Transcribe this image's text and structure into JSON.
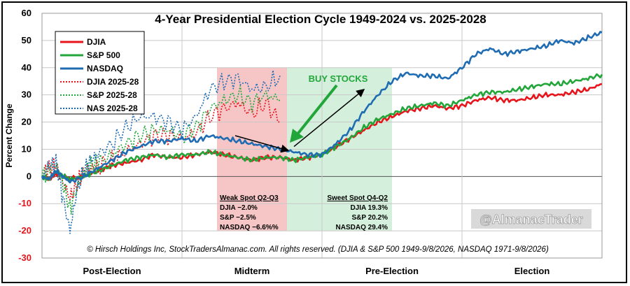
{
  "chart_data": {
    "type": "line",
    "title": "4-Year Presidential Election Cycle 1949-2024 vs. 2025-2028",
    "ylabel": "Percent Change",
    "xlabel": "",
    "ylim": [
      -30,
      60
    ],
    "yticks": [
      "60",
      "50",
      "40",
      "30",
      "20",
      "10",
      "0",
      "-10",
      "-20",
      "-30"
    ],
    "xlim": [
      0,
      4
    ],
    "x_categories": [
      "Post-Election",
      "Midterm",
      "Pre-Election",
      "Election"
    ],
    "grid": true,
    "legend_position": "top-left",
    "series": [
      {
        "name": "DJIA",
        "color": "#e8141b",
        "style": "solid",
        "x": [
          0,
          0.05,
          0.1,
          0.15,
          0.2,
          0.3,
          0.4,
          0.5,
          0.6,
          0.7,
          0.8,
          0.9,
          1.0,
          1.1,
          1.2,
          1.3,
          1.4,
          1.5,
          1.6,
          1.7,
          1.8,
          1.9,
          2.0,
          2.1,
          2.2,
          2.3,
          2.4,
          2.5,
          2.6,
          2.7,
          2.8,
          2.9,
          3.0,
          3.1,
          3.2,
          3.3,
          3.4,
          3.5,
          3.6,
          3.7,
          3.8,
          3.9,
          4.0
        ],
        "y": [
          0,
          -1,
          1,
          0,
          -1,
          0,
          2,
          4,
          5,
          6,
          8,
          7,
          7,
          8,
          9,
          8,
          7,
          6,
          7,
          7,
          6,
          7,
          8,
          11,
          14,
          17,
          20,
          22,
          24,
          25,
          26,
          25,
          26,
          28,
          29,
          28,
          28,
          29,
          30,
          30,
          31,
          32,
          34
        ]
      },
      {
        "name": "S&P 500",
        "color": "#22a63a",
        "style": "solid",
        "x": [
          0,
          0.05,
          0.1,
          0.15,
          0.2,
          0.3,
          0.4,
          0.5,
          0.6,
          0.7,
          0.8,
          0.9,
          1.0,
          1.1,
          1.2,
          1.3,
          1.4,
          1.5,
          1.6,
          1.7,
          1.8,
          1.9,
          2.0,
          2.1,
          2.2,
          2.3,
          2.4,
          2.5,
          2.6,
          2.7,
          2.8,
          2.9,
          3.0,
          3.1,
          3.2,
          3.3,
          3.4,
          3.5,
          3.6,
          3.7,
          3.8,
          3.9,
          4.0
        ],
        "y": [
          0,
          -1,
          2,
          0,
          -1,
          0,
          2,
          4,
          6,
          7,
          8,
          7,
          8,
          8,
          9,
          8,
          7,
          6,
          7,
          7,
          6,
          7,
          8,
          11,
          14,
          18,
          21,
          23,
          25,
          26,
          27,
          26,
          28,
          30,
          31,
          31,
          32,
          33,
          34,
          34,
          35,
          36,
          37.5
        ]
      },
      {
        "name": "NASDAQ",
        "color": "#1f6cb3",
        "style": "solid",
        "x": [
          0,
          0.05,
          0.1,
          0.15,
          0.2,
          0.3,
          0.4,
          0.5,
          0.6,
          0.7,
          0.8,
          0.9,
          1.0,
          1.1,
          1.2,
          1.3,
          1.4,
          1.5,
          1.6,
          1.7,
          1.8,
          1.9,
          2.0,
          2.1,
          2.2,
          2.3,
          2.4,
          2.5,
          2.6,
          2.7,
          2.8,
          2.9,
          3.0,
          3.1,
          3.2,
          3.3,
          3.4,
          3.5,
          3.6,
          3.7,
          3.8,
          3.9,
          4.0
        ],
        "y": [
          0,
          -1,
          2,
          0,
          -2,
          0,
          3,
          6,
          9,
          11,
          13,
          13,
          14,
          13,
          15,
          14,
          13,
          12,
          11,
          10,
          9,
          8,
          8,
          12,
          17,
          24,
          30,
          35,
          38,
          37,
          37,
          36,
          40,
          45,
          47,
          45,
          46,
          47,
          48,
          50,
          49,
          51,
          53
        ]
      },
      {
        "name": "DJIA 2025-28",
        "color": "#e8141b",
        "style": "dotted",
        "x": [
          0,
          0.05,
          0.1,
          0.15,
          0.2,
          0.25,
          0.3,
          0.35,
          0.4,
          0.5,
          0.6,
          0.7,
          0.8,
          0.9,
          1.0,
          1.1,
          1.2,
          1.3,
          1.4,
          1.5,
          1.6,
          1.7
        ],
        "y": [
          0,
          3,
          4,
          -2,
          -8,
          -3,
          2,
          3,
          4,
          6,
          9,
          12,
          15,
          15,
          14,
          16,
          22,
          25,
          27,
          23,
          27,
          20
        ]
      },
      {
        "name": "S&P 2025-28",
        "color": "#22a63a",
        "style": "dotted",
        "x": [
          0,
          0.05,
          0.1,
          0.15,
          0.2,
          0.25,
          0.3,
          0.35,
          0.4,
          0.5,
          0.6,
          0.7,
          0.8,
          0.9,
          1.0,
          1.1,
          1.2,
          1.3,
          1.4,
          1.5,
          1.6,
          1.7
        ],
        "y": [
          0,
          3,
          4,
          -3,
          -12,
          -4,
          2,
          4,
          5,
          8,
          12,
          15,
          17,
          17,
          15,
          18,
          25,
          28,
          30,
          27,
          30,
          28
        ]
      },
      {
        "name": "NAS 2025-28",
        "color": "#1f6cb3",
        "style": "dotted",
        "x": [
          0,
          0.05,
          0.1,
          0.15,
          0.2,
          0.25,
          0.3,
          0.35,
          0.4,
          0.5,
          0.6,
          0.7,
          0.8,
          0.9,
          1.0,
          1.1,
          1.2,
          1.3,
          1.4,
          1.5,
          1.6,
          1.7
        ],
        "y": [
          0,
          4,
          5,
          -8,
          -20,
          -5,
          2,
          6,
          8,
          12,
          18,
          22,
          22,
          20,
          17,
          22,
          32,
          35,
          36,
          32,
          33,
          37
        ]
      }
    ],
    "shaded_regions": [
      {
        "label": "Weak Spot Q2-Q3",
        "from": 1.25,
        "to": 1.75,
        "color": "#f6c6c6",
        "lines": [
          "DJIA −2.0%",
          "S&P −2.5%",
          "NASDAQ −6.6%%"
        ]
      },
      {
        "label": "Sweet Spot Q4-Q2",
        "from": 1.75,
        "to": 2.5,
        "color": "#d4f0dc",
        "lines": [
          "DJIA 19.3%",
          "S&P 20.2%",
          "NASDAQ 29.4%"
        ]
      }
    ],
    "annotations": {
      "buy": "BUY STOCKS",
      "credit": "© Hirsch Holdings Inc, StockTradersAlmanac.com. All rights reserved. (DJIA & S&P 500 1949-9/8/2026, NASDAQ 1971-9/8/2026)",
      "watermark": "@AlmanacTrader"
    }
  }
}
